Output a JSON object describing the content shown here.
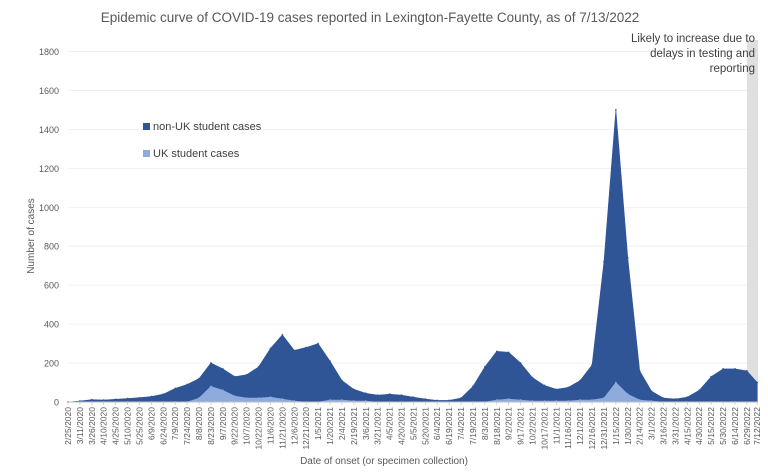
{
  "chart_data": {
    "type": "area",
    "title": "Epidemic curve of COVID-19 cases reported in Lexington-Fayette County, as of 7/13/2022",
    "xlabel": "Date of onset (or specimen collection)",
    "ylabel": "Number of cases",
    "ylim": [
      0,
      1900
    ],
    "yticks": [
      0,
      200,
      400,
      600,
      800,
      1000,
      1200,
      1400,
      1600,
      1800
    ],
    "legend_position": "upper-left, inside plot",
    "annotation": "Likely to increase due to delays in testing and reporting",
    "x_tick_labels": [
      "2/25/2020",
      "3/11/2020",
      "3/26/2020",
      "4/10/2020",
      "4/25/2020",
      "5/10/2020",
      "5/25/2020",
      "6/9/2020",
      "6/24/2020",
      "7/9/2020",
      "7/24/2020",
      "8/8/2020",
      "8/23/2020",
      "9/7/2020",
      "9/22/2020",
      "10/7/2020",
      "10/22/2020",
      "11/6/2020",
      "11/21/2020",
      "12/6/2020",
      "12/21/2020",
      "1/5/2021",
      "1/20/2021",
      "2/4/2021",
      "2/19/2021",
      "3/6/2021",
      "3/21/2021",
      "4/5/2021",
      "4/20/2021",
      "5/5/2021",
      "5/20/2021",
      "6/4/2021",
      "6/19/2021",
      "7/4/2021",
      "7/19/2021",
      "8/3/2021",
      "8/18/2021",
      "9/2/2021",
      "9/17/2021",
      "10/2/2021",
      "10/17/2021",
      "11/1/2021",
      "11/16/2021",
      "12/1/2021",
      "12/16/2021",
      "12/31/2021",
      "1/15/2022",
      "1/30/2022",
      "2/14/2022",
      "3/1/2022",
      "3/16/2022",
      "3/31/2022",
      "4/15/2022",
      "4/30/2022",
      "5/15/2022",
      "5/30/2022",
      "6/14/2022",
      "6/29/2022",
      "7/12/2022"
    ],
    "shaded_region": {
      "from": "6/29/2022",
      "to": "7/13/2022"
    },
    "series": [
      {
        "name": "non-UK student cases",
        "color": "#2F5597",
        "points": [
          [
            "2/25/2020",
            0
          ],
          [
            "3/11/2020",
            5
          ],
          [
            "3/26/2020",
            12
          ],
          [
            "4/10/2020",
            10
          ],
          [
            "4/25/2020",
            14
          ],
          [
            "5/10/2020",
            18
          ],
          [
            "5/25/2020",
            22
          ],
          [
            "6/9/2020",
            28
          ],
          [
            "6/24/2020",
            40
          ],
          [
            "7/9/2020",
            70
          ],
          [
            "7/24/2020",
            90
          ],
          [
            "8/8/2020",
            100
          ],
          [
            "8/23/2020",
            120
          ],
          [
            "9/7/2020",
            110
          ],
          [
            "9/22/2020",
            100
          ],
          [
            "10/7/2020",
            120
          ],
          [
            "10/22/2020",
            160
          ],
          [
            "11/6/2020",
            250
          ],
          [
            "11/21/2020",
            330
          ],
          [
            "12/6/2020",
            260
          ],
          [
            "12/21/2020",
            280
          ],
          [
            "1/5/2021",
            300
          ],
          [
            "1/20/2021",
            200
          ],
          [
            "2/4/2021",
            100
          ],
          [
            "2/19/2021",
            60
          ],
          [
            "3/6/2021",
            40
          ],
          [
            "3/21/2021",
            35
          ],
          [
            "4/5/2021",
            40
          ],
          [
            "4/20/2021",
            35
          ],
          [
            "5/5/2021",
            25
          ],
          [
            "5/20/2021",
            15
          ],
          [
            "6/4/2021",
            8
          ],
          [
            "6/19/2021",
            8
          ],
          [
            "7/4/2021",
            20
          ],
          [
            "7/19/2021",
            80
          ],
          [
            "8/3/2021",
            180
          ],
          [
            "8/18/2021",
            250
          ],
          [
            "9/2/2021",
            240
          ],
          [
            "9/17/2021",
            190
          ],
          [
            "10/2/2021",
            120
          ],
          [
            "10/17/2021",
            80
          ],
          [
            "11/1/2021",
            60
          ],
          [
            "11/16/2021",
            70
          ],
          [
            "12/1/2021",
            100
          ],
          [
            "12/16/2021",
            180
          ],
          [
            "12/31/2021",
            700
          ],
          [
            "1/15/2022",
            1400
          ],
          [
            "1/30/2022",
            700
          ],
          [
            "2/14/2022",
            150
          ],
          [
            "3/1/2022",
            50
          ],
          [
            "3/16/2022",
            20
          ],
          [
            "3/31/2022",
            15
          ],
          [
            "4/15/2022",
            25
          ],
          [
            "4/30/2022",
            60
          ],
          [
            "5/15/2022",
            130
          ],
          [
            "5/30/2022",
            170
          ],
          [
            "6/14/2022",
            170
          ],
          [
            "6/29/2022",
            160
          ],
          [
            "7/12/2022",
            100
          ]
        ]
      },
      {
        "name": "UK student cases",
        "color": "#8FAADC",
        "points": [
          [
            "2/25/2020",
            0
          ],
          [
            "3/11/2020",
            0
          ],
          [
            "3/26/2020",
            0
          ],
          [
            "4/10/2020",
            0
          ],
          [
            "4/25/2020",
            0
          ],
          [
            "5/10/2020",
            0
          ],
          [
            "5/25/2020",
            0
          ],
          [
            "6/9/2020",
            0
          ],
          [
            "6/24/2020",
            0
          ],
          [
            "7/9/2020",
            0
          ],
          [
            "7/24/2020",
            0
          ],
          [
            "8/8/2020",
            20
          ],
          [
            "8/23/2020",
            80
          ],
          [
            "9/7/2020",
            60
          ],
          [
            "9/22/2020",
            30
          ],
          [
            "10/7/2020",
            20
          ],
          [
            "10/22/2020",
            20
          ],
          [
            "11/6/2020",
            25
          ],
          [
            "11/21/2020",
            15
          ],
          [
            "12/6/2020",
            5
          ],
          [
            "12/21/2020",
            0
          ],
          [
            "1/5/2021",
            0
          ],
          [
            "1/20/2021",
            10
          ],
          [
            "2/4/2021",
            10
          ],
          [
            "2/19/2021",
            5
          ],
          [
            "3/6/2021",
            5
          ],
          [
            "3/21/2021",
            0
          ],
          [
            "4/5/2021",
            0
          ],
          [
            "4/20/2021",
            0
          ],
          [
            "5/5/2021",
            0
          ],
          [
            "5/20/2021",
            0
          ],
          [
            "6/4/2021",
            0
          ],
          [
            "6/19/2021",
            0
          ],
          [
            "7/4/2021",
            0
          ],
          [
            "7/19/2021",
            0
          ],
          [
            "8/3/2021",
            0
          ],
          [
            "8/18/2021",
            10
          ],
          [
            "9/2/2021",
            15
          ],
          [
            "9/17/2021",
            10
          ],
          [
            "10/2/2021",
            5
          ],
          [
            "10/17/2021",
            5
          ],
          [
            "11/1/2021",
            5
          ],
          [
            "11/16/2021",
            5
          ],
          [
            "12/1/2021",
            10
          ],
          [
            "12/16/2021",
            10
          ],
          [
            "12/31/2021",
            20
          ],
          [
            "1/15/2022",
            100
          ],
          [
            "1/30/2022",
            40
          ],
          [
            "2/14/2022",
            10
          ],
          [
            "3/1/2022",
            5
          ],
          [
            "3/16/2022",
            0
          ],
          [
            "3/31/2022",
            0
          ],
          [
            "4/15/2022",
            0
          ],
          [
            "4/30/2022",
            0
          ],
          [
            "5/15/2022",
            0
          ],
          [
            "5/30/2022",
            0
          ],
          [
            "6/14/2022",
            0
          ],
          [
            "6/29/2022",
            0
          ],
          [
            "7/12/2022",
            0
          ]
        ]
      }
    ]
  }
}
